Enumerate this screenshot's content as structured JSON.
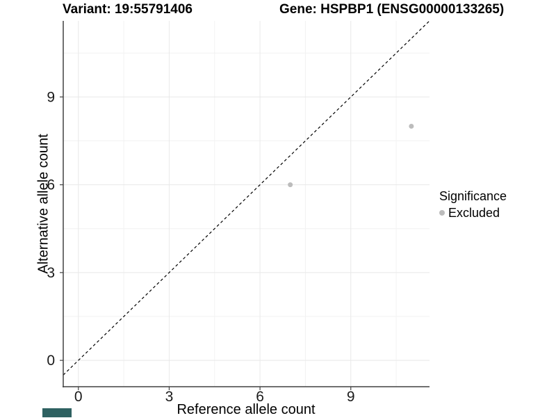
{
  "header": {
    "variant_title": "Variant: 19:55791406",
    "gene_title": "Gene: HSPBP1 (ENSG00000133265)"
  },
  "chart_data": {
    "type": "scatter",
    "title": "Variant: 19:55791406 / Gene: HSPBP1 (ENSG00000133265)",
    "xlabel": "Reference allele count",
    "ylabel": "Alternative allele count",
    "x_ticks": [
      0,
      3,
      6,
      9
    ],
    "y_ticks": [
      0,
      3,
      6,
      9
    ],
    "x_minor_ticks": [
      1.5,
      4.5,
      7.5,
      10.5
    ],
    "y_minor_ticks": [
      1.5,
      4.5,
      7.5,
      10.5
    ],
    "xlim": [
      -0.5,
      11.6
    ],
    "ylim": [
      -0.9,
      11.6
    ],
    "grid": true,
    "legend_position": "right",
    "series": [
      {
        "name": "Excluded",
        "color": "#bcbcbc",
        "points": [
          {
            "x": 7,
            "y": 6
          },
          {
            "x": 11,
            "y": 8
          }
        ]
      }
    ],
    "reference_line": {
      "type": "identity",
      "style": "dashed",
      "color": "#000000"
    }
  },
  "legend": {
    "title": "Significance",
    "items": [
      {
        "label": "Excluded",
        "color": "#bcbcbc"
      }
    ]
  },
  "colors": {
    "background": "#ffffff",
    "grid_major": "#e8e8e8",
    "grid_minor": "#f2f2f2",
    "axis": "#404040",
    "tick_label": "#1a1a1a",
    "point": "#bcbcbc",
    "corner_mark": "#2e6161"
  }
}
